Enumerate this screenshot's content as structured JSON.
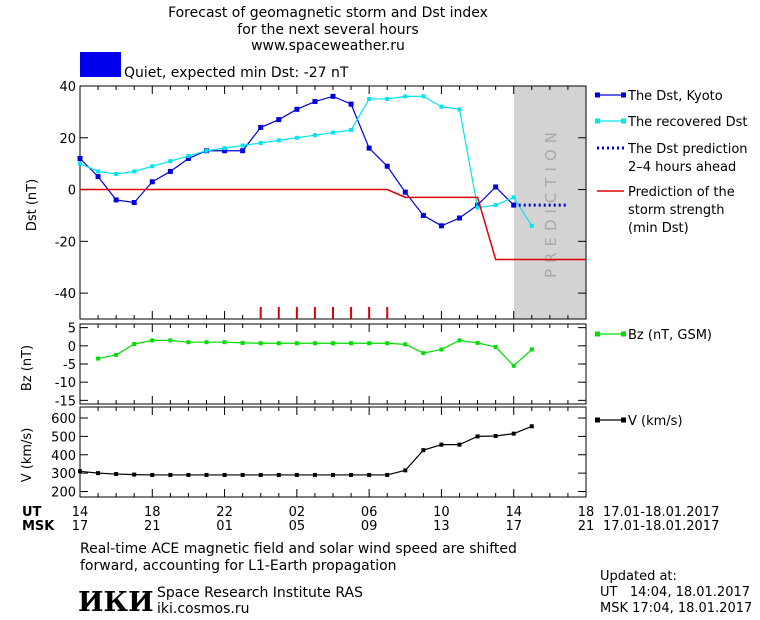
{
  "header": {
    "title_line1": "Forecast of geomagnetic storm and Dst index",
    "title_line2": "for the next several hours",
    "site": "www.spaceweather.ru",
    "status_color": "#0000ee",
    "status_text": "Quiet, expected min Dst: -27 nT"
  },
  "chart_data": [
    {
      "type": "line",
      "ylabel": "Dst (nT)",
      "ylim": [
        -50,
        40
      ],
      "yticks": [
        40,
        20,
        0,
        -20,
        -40
      ],
      "xlim": [
        0,
        28
      ],
      "grid": false,
      "legend_position": "right",
      "prediction_band": {
        "x_start": 24,
        "x_end": 28,
        "label": "PREDICTION",
        "color": "#d3d3d3"
      },
      "storm_markers_x": [
        10,
        11,
        12,
        13,
        14,
        15,
        16,
        17
      ],
      "series": [
        {
          "name": "The Dst, Kyoto",
          "color": "#0000dd",
          "marker": "square",
          "x": [
            0,
            1,
            2,
            3,
            4,
            5,
            6,
            7,
            8,
            9,
            10,
            11,
            12,
            13,
            14,
            15,
            16,
            17,
            18,
            19,
            20,
            21,
            22,
            23,
            24
          ],
          "values": [
            12,
            5,
            -4,
            -5,
            3,
            7,
            12,
            15,
            15,
            15,
            24,
            27,
            31,
            34,
            36,
            33,
            16,
            9,
            -1,
            -10,
            -14,
            -11,
            -6,
            1,
            -6
          ]
        },
        {
          "name": "The recovered Dst",
          "color": "#00e5ee",
          "marker": "square",
          "x": [
            0,
            1,
            2,
            3,
            4,
            5,
            6,
            7,
            8,
            9,
            10,
            11,
            12,
            13,
            14,
            15,
            16,
            17,
            18,
            19,
            20,
            21,
            22,
            23,
            24,
            25
          ],
          "values": [
            10,
            7,
            6,
            7,
            9,
            11,
            13,
            15,
            16,
            17,
            18,
            19,
            20,
            21,
            22,
            23,
            35,
            35,
            36,
            36,
            32,
            31,
            -7,
            -6,
            -3,
            -14
          ]
        },
        {
          "name": "The Dst prediction\n2–4 hours ahead",
          "color": "#0000dd",
          "style": "dotted",
          "x": [
            24,
            27
          ],
          "values": [
            -6,
            -6
          ]
        },
        {
          "name": "Prediction of the\nstorm strength\n(min Dst)",
          "color": "#dd0000",
          "style": "step",
          "x": [
            0,
            17,
            18,
            21,
            22,
            23,
            28
          ],
          "values": [
            0,
            0,
            -3,
            -3,
            -3,
            -27,
            -27
          ]
        }
      ]
    },
    {
      "type": "line",
      "ylabel": "Bz (nT)",
      "ylim": [
        -16,
        6
      ],
      "yticks": [
        5,
        0,
        -5,
        -10,
        -15
      ],
      "xlim": [
        0,
        28
      ],
      "series": [
        {
          "name": "Bz (nT, GSM)",
          "color": "#00dd00",
          "marker": "square",
          "x": [
            1,
            2,
            3,
            4,
            5,
            6,
            7,
            8,
            9,
            10,
            11,
            12,
            13,
            14,
            15,
            16,
            17,
            18,
            19,
            20,
            21,
            22,
            23,
            24,
            25
          ],
          "values": [
            -3.5,
            -2.5,
            0.5,
            1.5,
            1.5,
            1,
            1,
            1,
            0.8,
            0.7,
            0.7,
            0.7,
            0.7,
            0.7,
            0.7,
            0.7,
            0.7,
            0.4,
            -2,
            -1,
            1.5,
            0.8,
            -0.3,
            -5.5,
            -1
          ]
        }
      ]
    },
    {
      "type": "line",
      "ylabel": "V (km/s)",
      "ylim": [
        170,
        660
      ],
      "yticks": [
        600,
        500,
        400,
        300,
        200
      ],
      "xlim": [
        0,
        28
      ],
      "series": [
        {
          "name": "V (km/s)",
          "color": "#000000",
          "marker": "square",
          "x": [
            0,
            1,
            2,
            3,
            4,
            5,
            6,
            7,
            8,
            9,
            10,
            11,
            12,
            13,
            14,
            15,
            16,
            17,
            18,
            19,
            20,
            21,
            22,
            23,
            24,
            25
          ],
          "values": [
            310,
            300,
            295,
            292,
            290,
            290,
            290,
            290,
            290,
            290,
            290,
            290,
            290,
            290,
            290,
            290,
            290,
            290,
            315,
            425,
            455,
            455,
            500,
            502,
            515,
            555
          ]
        }
      ]
    }
  ],
  "xaxis": {
    "ut_label": "UT",
    "msk_label": "MSK",
    "ut_ticks": [
      "14",
      "18",
      "22",
      "02",
      "06",
      "10",
      "14",
      "18"
    ],
    "msk_ticks": [
      "17",
      "21",
      "01",
      "05",
      "09",
      "13",
      "17",
      "21"
    ],
    "date_range_ut": "17.01-18.01.2017",
    "date_range_msk": "17.01-18.01.2017"
  },
  "footer": {
    "note_line1": "Real-time ACE magnetic field and solar wind speed are shifted",
    "note_line2": "forward, accounting for L1-Earth propagation",
    "logo_text": "ИКИ",
    "institute": "Space Research Institute RAS",
    "institute_url": "iki.cosmos.ru",
    "updated_label": "Updated at:",
    "updated_ut": "UT   14:04, 18.01.2017",
    "updated_msk": "MSK 17:04, 18.01.2017"
  }
}
